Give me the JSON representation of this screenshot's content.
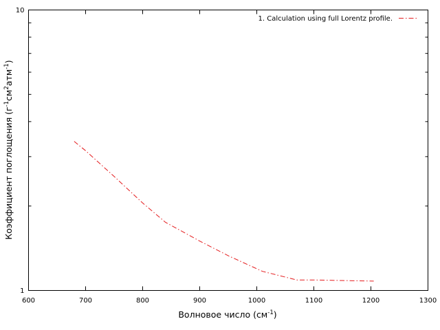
{
  "chart_data": {
    "type": "line",
    "title": "",
    "xlabel": {
      "main": "Волновое число (см",
      "sup": "-1",
      "end": ")"
    },
    "ylabel": {
      "parts": [
        {
          "text": "Коэффициент поглощения (г",
          "sup": false
        },
        {
          "text": "-1",
          "sup": true
        },
        {
          "text": "см",
          "sup": false
        },
        {
          "text": "2",
          "sup": true
        },
        {
          "text": "атм",
          "sup": false
        },
        {
          "text": "-1",
          "sup": true
        },
        {
          "text": ")",
          "sup": false
        }
      ]
    },
    "xlim": [
      600,
      1300
    ],
    "ylim": [
      1,
      10
    ],
    "y_scale": "log",
    "x_ticks": [
      600,
      700,
      800,
      900,
      1000,
      1100,
      1200,
      1300
    ],
    "y_ticks": [
      1,
      10
    ],
    "legend_position": "top-right",
    "series": [
      {
        "name": "1. Calculation using full Lorentz profile.",
        "color": "#e41a1c",
        "dash": "dash-dot",
        "x": [
          680,
          700,
          750,
          800,
          840,
          900,
          950,
          1010,
          1070,
          1100,
          1150,
          1205
        ],
        "y": [
          3.4,
          3.15,
          2.55,
          2.05,
          1.75,
          1.5,
          1.33,
          1.17,
          1.09,
          1.09,
          1.085,
          1.08
        ]
      }
    ]
  }
}
